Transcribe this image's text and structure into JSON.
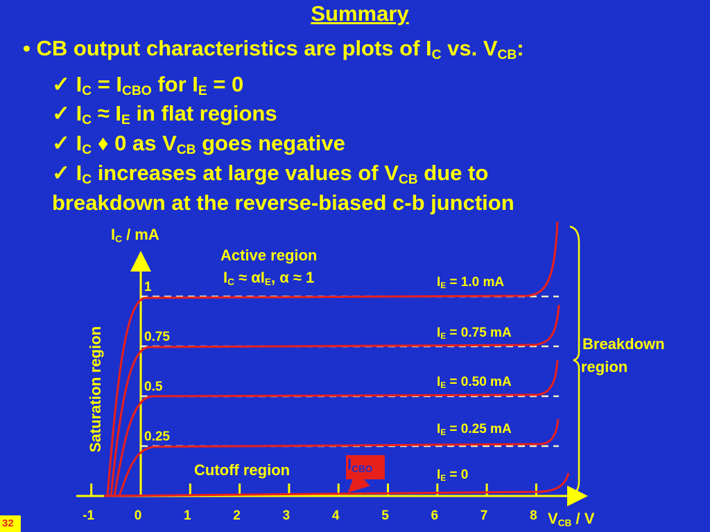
{
  "title": "Summary",
  "bullet": [
    "• CB output characteristics are plots of I",
    "C",
    " vs. V",
    "CB",
    ":"
  ],
  "checks": [
    [
      "✓ I",
      "C",
      " = I",
      "CBO",
      " for I",
      "E",
      " = 0"
    ],
    [
      "✓ I",
      "C",
      " ≈ I",
      "E",
      " in flat regions"
    ],
    [
      "✓ I",
      "C",
      " ♦ 0 as V",
      "CB",
      " goes negative"
    ],
    [
      "✓ I",
      "C",
      " increases at large values of V",
      "CB",
      " due  to"
    ],
    [
      "breakdown at the reverse-biased c-b junction"
    ]
  ],
  "diagram": {
    "y_axis_label": [
      "I",
      "C",
      " / mA"
    ],
    "x_axis_label": [
      "V",
      "CB",
      " / V"
    ],
    "active_region": "Active region",
    "active_formula": [
      "I",
      "C",
      " ≈ αI",
      "E",
      ", α ≈ 1"
    ],
    "xticks": [
      -1,
      0,
      1,
      2,
      3,
      4,
      5,
      6,
      7,
      8
    ],
    "yticks": [
      1,
      0.75,
      0.5,
      0.25
    ],
    "ie_labels": [
      [
        "I",
        "E",
        " = 1.0 mA"
      ],
      [
        "I",
        "E",
        " = 0.75 mA"
      ],
      [
        "I",
        "E",
        " = 0.50 mA"
      ],
      [
        "I",
        "E",
        " = 0.25 mA"
      ],
      [
        "I",
        "E",
        " = 0"
      ]
    ],
    "breakdown": [
      "Breakdown",
      "region"
    ],
    "saturation": "Saturation region",
    "cutoff": "Cutoff region",
    "icbo": [
      "I",
      "CBO"
    ]
  },
  "page_number": "32"
}
